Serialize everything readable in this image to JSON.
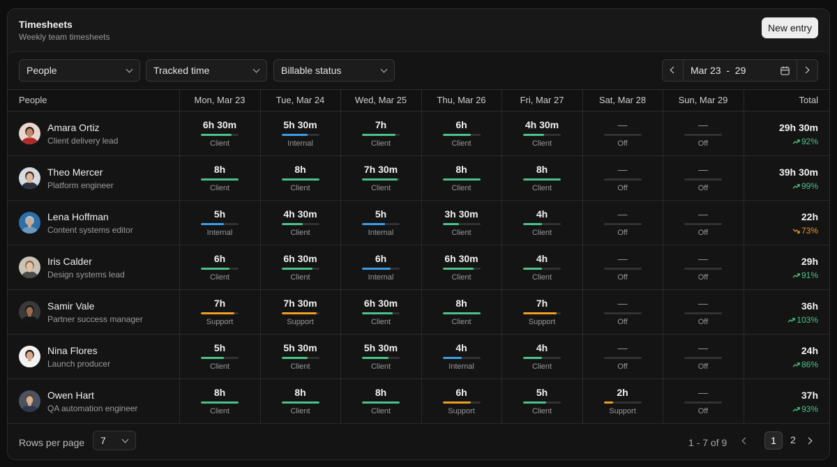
{
  "header": {
    "title": "Timesheets",
    "subtitle": "Weekly team timesheets",
    "new_entry_label": "New entry"
  },
  "filters": {
    "people": "People",
    "tracked": "Tracked time",
    "billable": "Billable status"
  },
  "date_range": "Mar 23  -  29",
  "columns": {
    "people": "People",
    "days": [
      "Mon, Mar 23",
      "Tue, Mar 24",
      "Wed, Mar 25",
      "Thu, Mar 26",
      "Fri, Mar 27",
      "Sat, Mar 28",
      "Sun, Mar 29"
    ],
    "total": "Total"
  },
  "colors": {
    "Client": "#4cc38a",
    "Internal": "#3b9ee8",
    "Support": "#f0a020",
    "Off": "#323232",
    "trend_up": "#4cc38a",
    "trend_down": "#e8962c"
  },
  "rows": [
    {
      "name": "Amara Ortiz",
      "role": "Client delivery lead",
      "avatar": "woman-red",
      "days": [
        {
          "hours": "6h 30m",
          "category": "Client",
          "fill": 0.82
        },
        {
          "hours": "5h 30m",
          "category": "Internal",
          "fill": 0.7
        },
        {
          "hours": "7h",
          "category": "Client",
          "fill": 0.88
        },
        {
          "hours": "6h",
          "category": "Client",
          "fill": 0.75
        },
        {
          "hours": "4h 30m",
          "category": "Client",
          "fill": 0.56
        },
        {
          "hours": "—",
          "category": "Off",
          "fill": 0
        },
        {
          "hours": "—",
          "category": "Off",
          "fill": 0
        }
      ],
      "total": "29h 30m",
      "pct": "92%",
      "trend": "up"
    },
    {
      "name": "Theo Mercer",
      "role": "Platform engineer",
      "avatar": "man-light",
      "days": [
        {
          "hours": "8h",
          "category": "Client",
          "fill": 1
        },
        {
          "hours": "8h",
          "category": "Client",
          "fill": 1
        },
        {
          "hours": "7h 30m",
          "category": "Client",
          "fill": 0.94
        },
        {
          "hours": "8h",
          "category": "Client",
          "fill": 1
        },
        {
          "hours": "8h",
          "category": "Client",
          "fill": 1
        },
        {
          "hours": "—",
          "category": "Off",
          "fill": 0
        },
        {
          "hours": "—",
          "category": "Off",
          "fill": 0
        }
      ],
      "total": "39h 30m",
      "pct": "99%",
      "trend": "up"
    },
    {
      "name": "Lena Hoffman",
      "role": "Content systems editor",
      "avatar": "woman-blue",
      "days": [
        {
          "hours": "5h",
          "category": "Internal",
          "fill": 0.62
        },
        {
          "hours": "4h 30m",
          "category": "Client",
          "fill": 0.56
        },
        {
          "hours": "5h",
          "category": "Internal",
          "fill": 0.62
        },
        {
          "hours": "3h 30m",
          "category": "Client",
          "fill": 0.44
        },
        {
          "hours": "4h",
          "category": "Client",
          "fill": 0.5
        },
        {
          "hours": "—",
          "category": "Off",
          "fill": 0
        },
        {
          "hours": "—",
          "category": "Off",
          "fill": 0
        }
      ],
      "total": "22h",
      "pct": "73%",
      "trend": "down"
    },
    {
      "name": "Iris Calder",
      "role": "Design systems lead",
      "avatar": "woman-light",
      "days": [
        {
          "hours": "6h",
          "category": "Client",
          "fill": 0.75
        },
        {
          "hours": "6h 30m",
          "category": "Client",
          "fill": 0.82
        },
        {
          "hours": "6h",
          "category": "Internal",
          "fill": 0.75
        },
        {
          "hours": "6h 30m",
          "category": "Client",
          "fill": 0.82
        },
        {
          "hours": "4h",
          "category": "Client",
          "fill": 0.5
        },
        {
          "hours": "—",
          "category": "Off",
          "fill": 0
        },
        {
          "hours": "—",
          "category": "Off",
          "fill": 0
        }
      ],
      "total": "29h",
      "pct": "91%",
      "trend": "up"
    },
    {
      "name": "Samir Vale",
      "role": "Partner success manager",
      "avatar": "man-dark",
      "days": [
        {
          "hours": "7h",
          "category": "Support",
          "fill": 0.88
        },
        {
          "hours": "7h 30m",
          "category": "Support",
          "fill": 0.94
        },
        {
          "hours": "6h 30m",
          "category": "Client",
          "fill": 0.82
        },
        {
          "hours": "8h",
          "category": "Client",
          "fill": 1
        },
        {
          "hours": "7h",
          "category": "Support",
          "fill": 0.88
        },
        {
          "hours": "—",
          "category": "Off",
          "fill": 0
        },
        {
          "hours": "—",
          "category": "Off",
          "fill": 0
        }
      ],
      "total": "36h",
      "pct": "103%",
      "trend": "up"
    },
    {
      "name": "Nina Flores",
      "role": "Launch producer",
      "avatar": "woman-white",
      "days": [
        {
          "hours": "5h",
          "category": "Client",
          "fill": 0.62
        },
        {
          "hours": "5h 30m",
          "category": "Client",
          "fill": 0.7
        },
        {
          "hours": "5h 30m",
          "category": "Client",
          "fill": 0.7
        },
        {
          "hours": "4h",
          "category": "Internal",
          "fill": 0.5
        },
        {
          "hours": "4h",
          "category": "Client",
          "fill": 0.5
        },
        {
          "hours": "—",
          "category": "Off",
          "fill": 0
        },
        {
          "hours": "—",
          "category": "Off",
          "fill": 0
        }
      ],
      "total": "24h",
      "pct": "86%",
      "trend": "up"
    },
    {
      "name": "Owen Hart",
      "role": "QA automation engineer",
      "avatar": "man-grey",
      "days": [
        {
          "hours": "8h",
          "category": "Client",
          "fill": 1
        },
        {
          "hours": "8h",
          "category": "Client",
          "fill": 1
        },
        {
          "hours": "8h",
          "category": "Client",
          "fill": 1
        },
        {
          "hours": "6h",
          "category": "Support",
          "fill": 0.75
        },
        {
          "hours": "5h",
          "category": "Client",
          "fill": 0.62
        },
        {
          "hours": "2h",
          "category": "Support",
          "fill": 0.25
        },
        {
          "hours": "—",
          "category": "Off",
          "fill": 0
        }
      ],
      "total": "37h",
      "pct": "93%",
      "trend": "up"
    }
  ],
  "footer": {
    "rows_per_page_label": "Rows per page",
    "rows_per_page": "7",
    "range": "1 - 7 of 9",
    "pages": [
      "1",
      "2"
    ]
  }
}
